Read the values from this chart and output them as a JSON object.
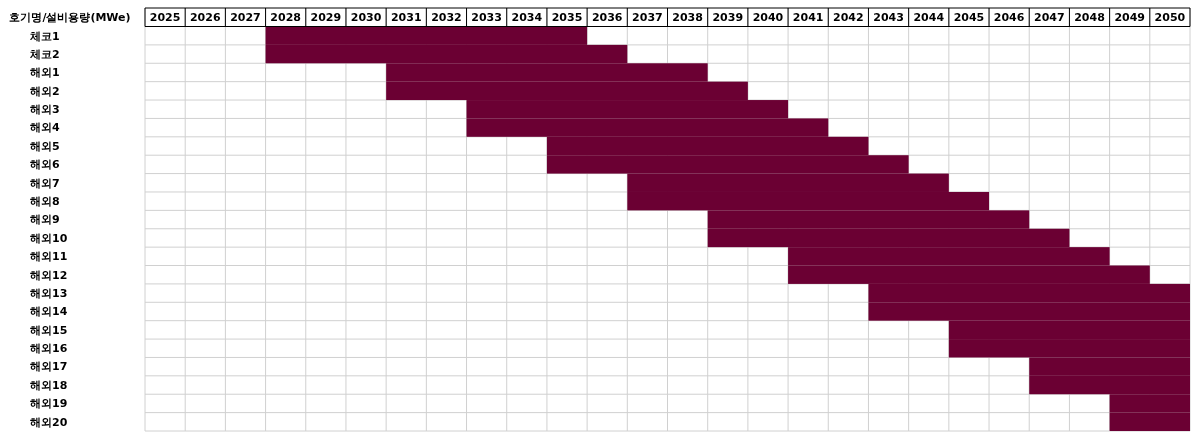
{
  "chart_data": {
    "type": "bar",
    "orientation": "horizontal",
    "ylabel": "호기명/설비용량(MWe)",
    "categories": [
      "체코1",
      "체코2",
      "해외1",
      "해외2",
      "해외3",
      "해외4",
      "해외5",
      "해외6",
      "해외7",
      "해외8",
      "해외9",
      "해외10",
      "해외11",
      "해외12",
      "해외13",
      "해외14",
      "해외15",
      "해외16",
      "해외17",
      "해외18",
      "해외19",
      "해외20"
    ],
    "base": [
      2028,
      2028,
      2031,
      2031,
      2033,
      2033,
      2035,
      2035,
      2037,
      2037,
      2039,
      2039,
      2041,
      2041,
      2043,
      2043,
      2045,
      2045,
      2047,
      2047,
      2049,
      2049
    ],
    "values": [
      8,
      9,
      8,
      9,
      8,
      9,
      8,
      9,
      8,
      9,
      8,
      9,
      8,
      9,
      8,
      8,
      6,
      6,
      4,
      4,
      2,
      2
    ],
    "color": "#6b0033",
    "xlim": [
      2025,
      2051
    ],
    "xticks": [
      {
        "value": 2025.5,
        "label": "2025"
      },
      {
        "value": 2026.5,
        "label": "2026"
      },
      {
        "value": 2027.5,
        "label": "2027"
      },
      {
        "value": 2028.5,
        "label": "2028"
      },
      {
        "value": 2029.5,
        "label": "2029"
      },
      {
        "value": 2030.5,
        "label": "2030"
      },
      {
        "value": 2031.5,
        "label": "2031"
      },
      {
        "value": 2032.5,
        "label": "2032"
      },
      {
        "value": 2033.5,
        "label": "2033"
      },
      {
        "value": 2034.5,
        "label": "2034"
      },
      {
        "value": 2035.5,
        "label": "2035"
      },
      {
        "value": 2036.5,
        "label": "2036"
      },
      {
        "value": 2037.5,
        "label": "2037"
      },
      {
        "value": 2038.5,
        "label": "2038"
      },
      {
        "value": 2039.5,
        "label": "2039"
      },
      {
        "value": 2040.5,
        "label": "2040"
      },
      {
        "value": 2041.5,
        "label": "2041"
      },
      {
        "value": 2042.5,
        "label": "2042"
      },
      {
        "value": 2043.5,
        "label": "2043"
      },
      {
        "value": 2044.5,
        "label": "2044"
      },
      {
        "value": 2045.5,
        "label": "2045"
      },
      {
        "value": 2046.5,
        "label": "2046"
      },
      {
        "value": 2047.5,
        "label": "2047"
      },
      {
        "value": 2048.5,
        "label": "2048"
      },
      {
        "value": 2049.5,
        "label": "2049"
      },
      {
        "value": 2050.5,
        "label": "2050"
      }
    ],
    "grid": true
  }
}
